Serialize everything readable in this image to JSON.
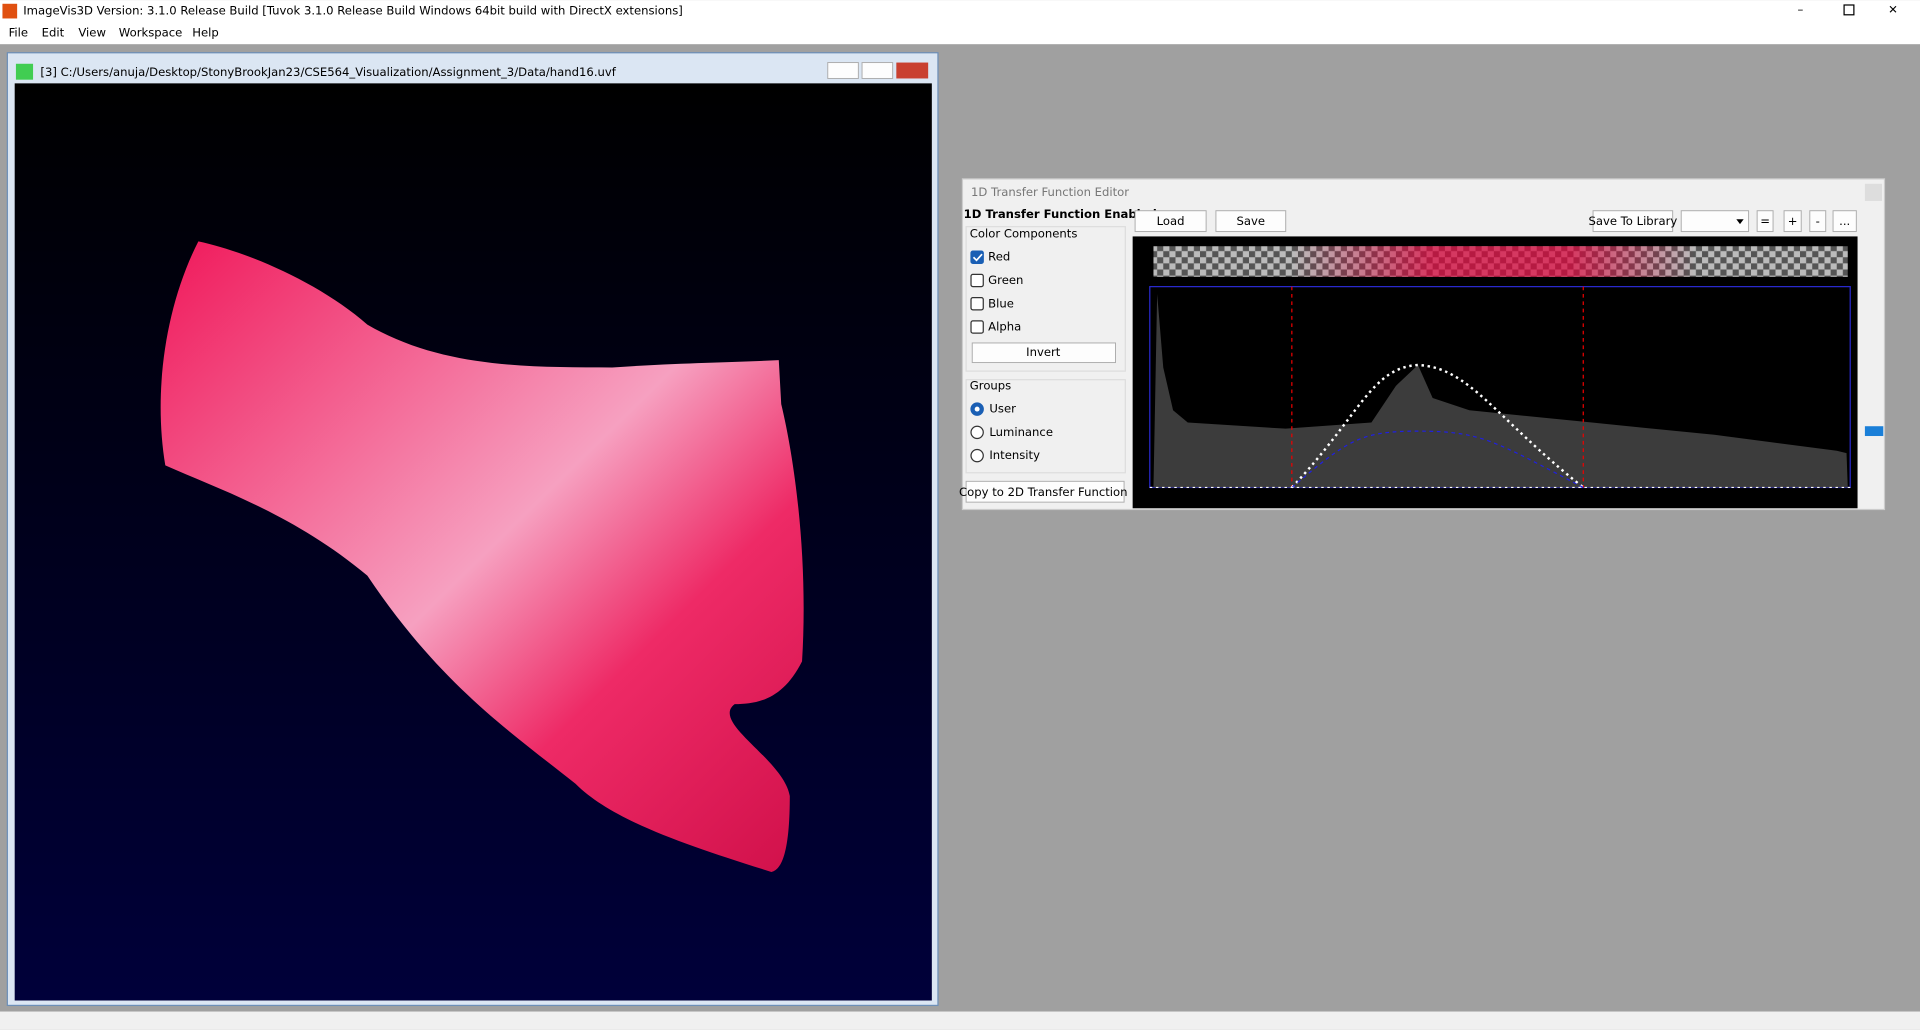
{
  "app": {
    "title": "ImageVis3D Version: 3.1.0 Release Build [Tuvok 3.1.0 Release Build Windows 64bit build with DirectX extensions]",
    "menu": [
      "File",
      "Edit",
      "View",
      "Workspace",
      "Help"
    ]
  },
  "render_window": {
    "title": "[3] C:/Users/anuja/Desktop/StonyBrookJan23/CSE564_Visualization/Assignment_3/Data/hand16.uvf"
  },
  "editor": {
    "title": "1D Transfer Function Editor",
    "status": "1D Transfer Function Enabled",
    "buttons": [
      "Load",
      "Save"
    ],
    "library_buttons": [
      "Save To Library",
      "=",
      "+",
      "-",
      "..."
    ],
    "color_components": {
      "title": "Color Components",
      "items": [
        {
          "label": "Red",
          "checked": true
        },
        {
          "label": "Green",
          "checked": false
        },
        {
          "label": "Blue",
          "checked": false
        },
        {
          "label": "Alpha",
          "checked": false
        }
      ],
      "invert": "Invert"
    },
    "groups": {
      "title": "Groups",
      "items": [
        {
          "label": "User",
          "selected": true
        },
        {
          "label": "Luminance",
          "selected": false
        },
        {
          "label": "Intensity",
          "selected": false
        }
      ]
    },
    "copy_button": "Copy to 2D Transfer Function"
  }
}
